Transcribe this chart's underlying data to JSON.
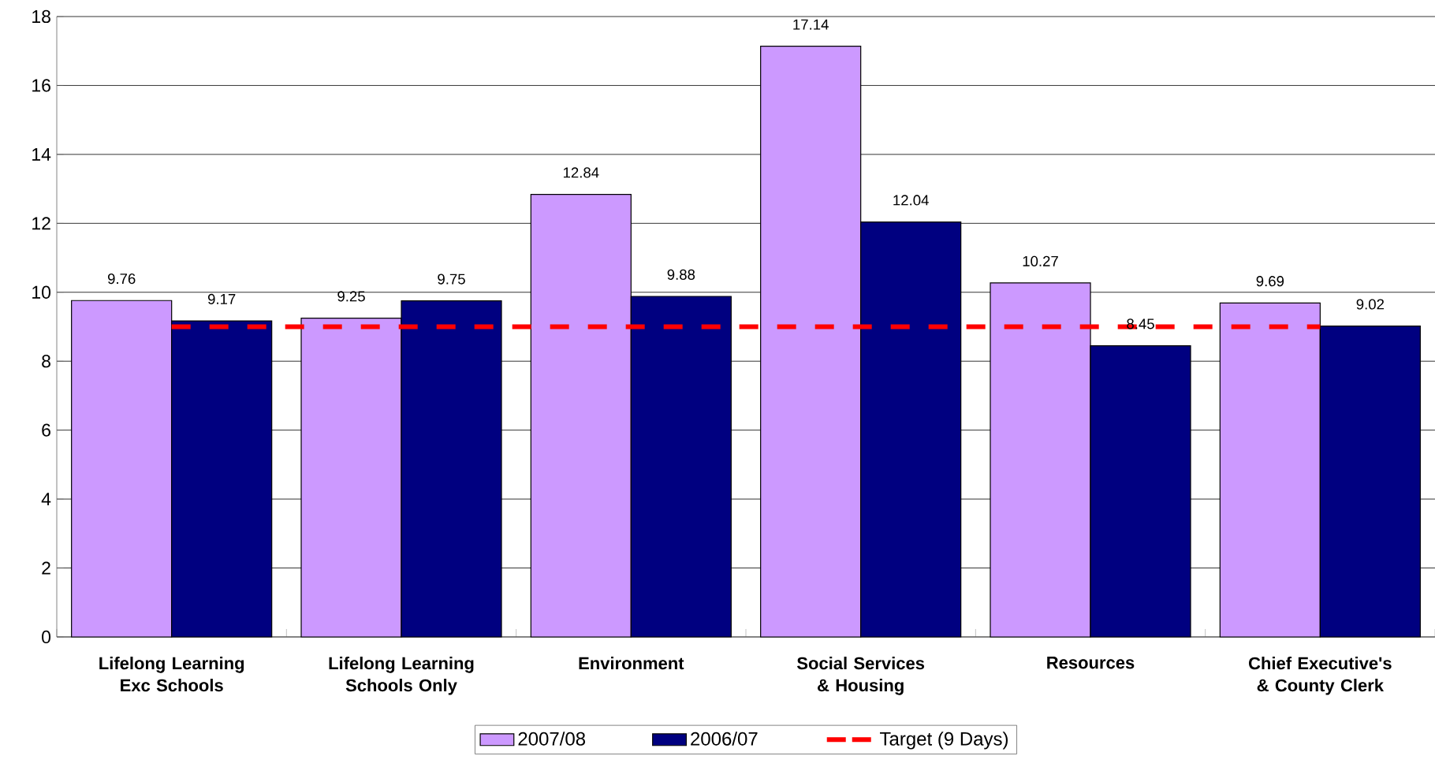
{
  "chart_data": {
    "type": "bar",
    "categories": [
      "Lifelong Learning Exc Schools",
      "Lifelong Learning Schools Only",
      "Environment",
      "Social Services & Housing",
      "Resources",
      "Chief Executive's & County Clerk"
    ],
    "series": [
      {
        "name": "2007/08",
        "color": "#cc99ff",
        "values": [
          9.76,
          9.25,
          12.84,
          17.14,
          10.27,
          9.69
        ],
        "value_labels": [
          "9.76",
          "9.25",
          "12.84",
          "17.14",
          "10.27",
          "9.69"
        ]
      },
      {
        "name": "2006/07",
        "color": "#000080",
        "values": [
          9.17,
          9.75,
          9.88,
          12.04,
          8.45,
          9.02
        ],
        "value_labels": [
          "9.17",
          "9.75",
          "9.88",
          "12.04",
          "8.45",
          "9.02"
        ]
      },
      {
        "name": "Target (9 Days)",
        "type": "line",
        "color": "#ff0000",
        "line_style": "dashed",
        "marker": "none",
        "values": [
          9,
          9,
          9,
          9,
          9,
          9
        ]
      }
    ],
    "ylim": [
      0,
      18
    ],
    "yticks": [
      0,
      2,
      4,
      6,
      8,
      10,
      12,
      14,
      16,
      18
    ],
    "grid": "y",
    "legend": "bottom"
  }
}
